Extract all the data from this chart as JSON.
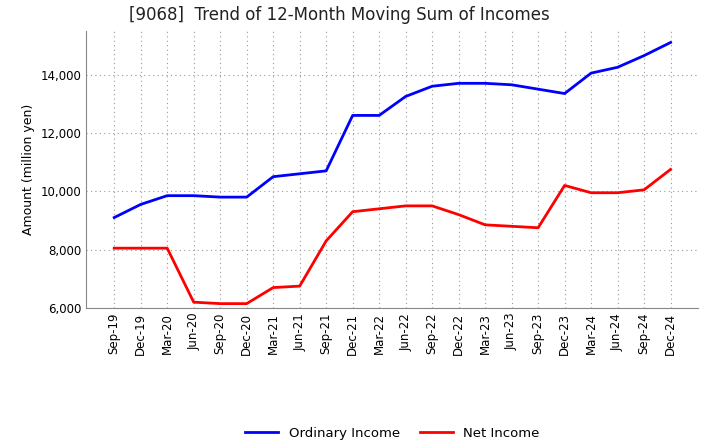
{
  "title": "[9068]  Trend of 12-Month Moving Sum of Incomes",
  "ylabel": "Amount (million yen)",
  "xlim_labels": [
    "Sep-19",
    "Dec-19",
    "Mar-20",
    "Jun-20",
    "Sep-20",
    "Dec-20",
    "Mar-21",
    "Jun-21",
    "Sep-21",
    "Dec-21",
    "Mar-22",
    "Jun-22",
    "Sep-22",
    "Dec-22",
    "Mar-23",
    "Jun-23",
    "Sep-23",
    "Dec-23",
    "Mar-24",
    "Jun-24",
    "Sep-24",
    "Dec-24"
  ],
  "ordinary_income": [
    9100,
    9550,
    9850,
    9850,
    9800,
    9800,
    10500,
    10600,
    10700,
    12600,
    12600,
    13250,
    13600,
    13700,
    13700,
    13650,
    13500,
    13350,
    14050,
    14250,
    14650,
    15100
  ],
  "net_income": [
    8050,
    8050,
    8050,
    6200,
    6150,
    6150,
    6700,
    6750,
    8300,
    9300,
    9400,
    9500,
    9500,
    9200,
    8850,
    8800,
    8750,
    10200,
    9950,
    9950,
    10050,
    10750
  ],
  "ordinary_income_color": "#0000FF",
  "net_income_color": "#FF0000",
  "ylim": [
    6000,
    15500
  ],
  "yticks": [
    6000,
    8000,
    10000,
    12000,
    14000
  ],
  "background_color": "#FFFFFF",
  "plot_bg_color": "#FFFFFF",
  "grid_color": "#999999",
  "legend_ordinary": "Ordinary Income",
  "legend_net": "Net Income",
  "title_fontsize": 12,
  "axis_label_fontsize": 9,
  "tick_fontsize": 8.5,
  "legend_fontsize": 9.5,
  "line_width": 2.0
}
